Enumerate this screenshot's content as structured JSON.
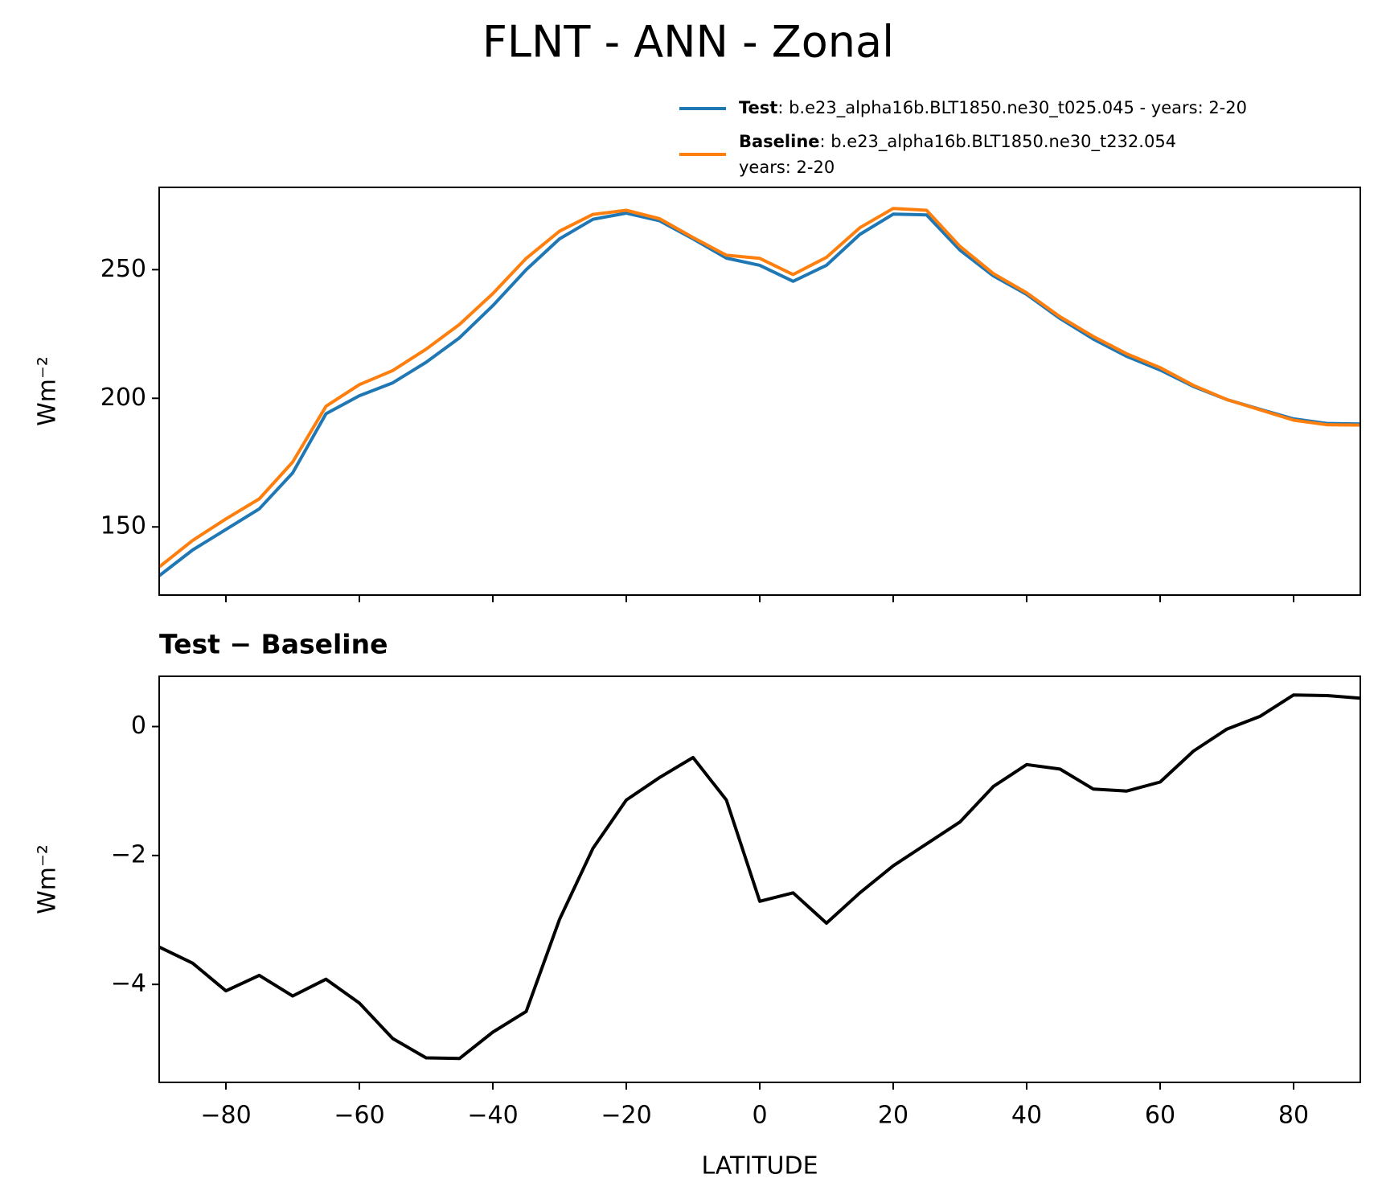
{
  "chart_data": [
    {
      "type": "line",
      "title": "FLNT - ANN - Zonal",
      "ylabel": "Wm⁻²",
      "x": [
        -90,
        -85,
        -80,
        -75,
        -70,
        -65,
        -60,
        -55,
        -50,
        -45,
        -40,
        -35,
        -30,
        -25,
        -20,
        -15,
        -10,
        -5,
        0,
        5,
        10,
        15,
        20,
        25,
        30,
        35,
        40,
        45,
        50,
        55,
        60,
        65,
        70,
        75,
        80,
        85,
        90
      ],
      "series": [
        {
          "name": "Test",
          "description": ": b.e23_alpha16b.BLT1850.ne30_t025.045 - years: 2-20",
          "color": "#1f77b4",
          "values": [
            131,
            141,
            149,
            157,
            171,
            194,
            201,
            206,
            214,
            223.5,
            236,
            250,
            262,
            269.6,
            272,
            269,
            262,
            254.5,
            251.7,
            245.5,
            251.7,
            263.7,
            271.6,
            271.3,
            257.6,
            247.6,
            240.4,
            231,
            223,
            216.3,
            211,
            204.6,
            199.5,
            195.7,
            192,
            190.2,
            190
          ]
        },
        {
          "name": "Baseline",
          "description": ": b.e23_alpha16b.BLT1850.ne30_t232.054",
          "description_line2": "years: 2-20",
          "color": "#ff7f0e",
          "values": [
            134.4,
            144.7,
            153.1,
            160.9,
            175.2,
            196.9,
            205.3,
            210.8,
            219.1,
            228.7,
            240.7,
            254.4,
            265,
            271.5,
            273.1,
            269.8,
            262.5,
            255.6,
            254.4,
            248.1,
            254.8,
            266.3,
            273.8,
            273.1,
            259.1,
            248.5,
            241,
            231.7,
            224,
            217.3,
            211.9,
            205,
            199.5,
            195.5,
            191.5,
            189.7,
            189.6
          ]
        }
      ],
      "xlim": [
        -90,
        90
      ],
      "xticks": [
        -80,
        -60,
        -40,
        -20,
        0,
        20,
        40,
        60,
        80
      ],
      "ylim": [
        123.5,
        282
      ],
      "yticks": [
        150,
        200,
        250
      ]
    },
    {
      "type": "line",
      "title": "Test − Baseline",
      "ylabel": "Wm⁻²",
      "xlabel": "LATITUDE",
      "x": [
        -90,
        -85,
        -80,
        -75,
        -70,
        -65,
        -60,
        -55,
        -50,
        -45,
        -40,
        -35,
        -30,
        -25,
        -20,
        -15,
        -10,
        -5,
        0,
        5,
        10,
        15,
        20,
        25,
        30,
        35,
        40,
        45,
        50,
        55,
        60,
        65,
        70,
        75,
        80,
        85,
        90
      ],
      "series": [
        {
          "color": "#000000",
          "values": [
            -3.42,
            -3.67,
            -4.1,
            -3.86,
            -4.18,
            -3.92,
            -4.29,
            -4.84,
            -5.14,
            -5.15,
            -4.74,
            -4.42,
            -2.99,
            -1.89,
            -1.14,
            -0.79,
            -0.48,
            -1.14,
            -2.71,
            -2.58,
            -3.05,
            -2.58,
            -2.16,
            -1.82,
            -1.48,
            -0.93,
            -0.59,
            -0.66,
            -0.97,
            -1.0,
            -0.86,
            -0.38,
            -0.04,
            0.16,
            0.49,
            0.48,
            0.44
          ]
        }
      ],
      "xlim": [
        -90,
        90
      ],
      "xticks": [
        {
          "value": -80,
          "label": "−80"
        },
        {
          "value": -60,
          "label": "−60"
        },
        {
          "value": -40,
          "label": "−40"
        },
        {
          "value": -20,
          "label": "−20"
        },
        0,
        20,
        40,
        60,
        80
      ],
      "ylim": [
        -5.52,
        0.78
      ],
      "yticks": [
        0,
        {
          "value": -2,
          "label": "−2"
        },
        {
          "value": -4,
          "label": "−4"
        }
      ]
    }
  ]
}
